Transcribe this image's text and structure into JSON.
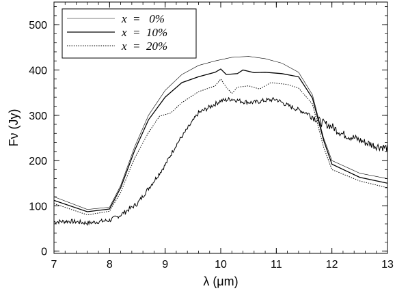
{
  "chart_data": {
    "type": "line",
    "xlabel": "λ (μm)",
    "ylabel": "Fν (Jy)",
    "xlim": [
      7,
      13
    ],
    "ylim": [
      -5,
      550
    ],
    "x_ticks": [
      7,
      8,
      9,
      10,
      11,
      12,
      13
    ],
    "y_ticks": [
      0,
      100,
      200,
      300,
      400,
      500
    ],
    "grid": false,
    "legend_position": "top-left",
    "series": [
      {
        "name": "x  =   0%",
        "style": "thin",
        "color": "#000000",
        "x": [
          7.0,
          7.6,
          8.0,
          8.2,
          8.45,
          8.7,
          9.0,
          9.3,
          9.6,
          9.9,
          10.2,
          10.5,
          10.8,
          11.1,
          11.4,
          11.65,
          11.85,
          12.0,
          12.5,
          13.0
        ],
        "y": [
          120,
          92,
          97,
          145,
          230,
          300,
          355,
          390,
          410,
          420,
          428,
          430,
          425,
          415,
          395,
          345,
          250,
          200,
          172,
          160
        ]
      },
      {
        "name": "x  =  10%",
        "style": "solid",
        "color": "#000000",
        "x": [
          7.0,
          7.6,
          8.0,
          8.2,
          8.45,
          8.7,
          9.0,
          9.3,
          9.6,
          9.9,
          10.0,
          10.1,
          10.3,
          10.4,
          10.6,
          10.8,
          11.1,
          11.4,
          11.65,
          11.85,
          12.0,
          12.5,
          13.0
        ],
        "y": [
          112,
          87,
          93,
          140,
          222,
          290,
          340,
          372,
          385,
          395,
          402,
          390,
          392,
          400,
          394,
          395,
          392,
          385,
          338,
          245,
          192,
          163,
          150
        ]
      },
      {
        "name": "x  =  20%",
        "style": "dotted",
        "color": "#000000",
        "x": [
          7.0,
          7.6,
          8.0,
          8.2,
          8.45,
          8.7,
          8.9,
          9.1,
          9.3,
          9.6,
          9.9,
          10.0,
          10.1,
          10.2,
          10.3,
          10.5,
          10.7,
          10.9,
          11.2,
          11.4,
          11.65,
          11.85,
          12.0,
          12.5,
          13.0
        ],
        "y": [
          105,
          80,
          88,
          130,
          205,
          262,
          298,
          305,
          328,
          352,
          365,
          380,
          362,
          348,
          362,
          365,
          358,
          372,
          368,
          360,
          325,
          230,
          180,
          155,
          140
        ]
      },
      {
        "name": "",
        "style": "noisy",
        "color": "#000000",
        "x": [
          7.0,
          7.3,
          7.6,
          8.0,
          8.2,
          8.5,
          8.8,
          9.0,
          9.2,
          9.4,
          9.6,
          9.8,
          10.0,
          10.2,
          10.4,
          10.6,
          10.8,
          11.0,
          11.2,
          11.4,
          11.6,
          11.8,
          12.0,
          12.2,
          12.4,
          12.6,
          12.8,
          13.0
        ],
        "y": [
          65,
          66,
          62,
          68,
          80,
          105,
          155,
          190,
          235,
          270,
          305,
          318,
          332,
          336,
          330,
          328,
          333,
          335,
          322,
          312,
          302,
          285,
          275,
          258,
          250,
          240,
          232,
          228
        ]
      }
    ]
  }
}
